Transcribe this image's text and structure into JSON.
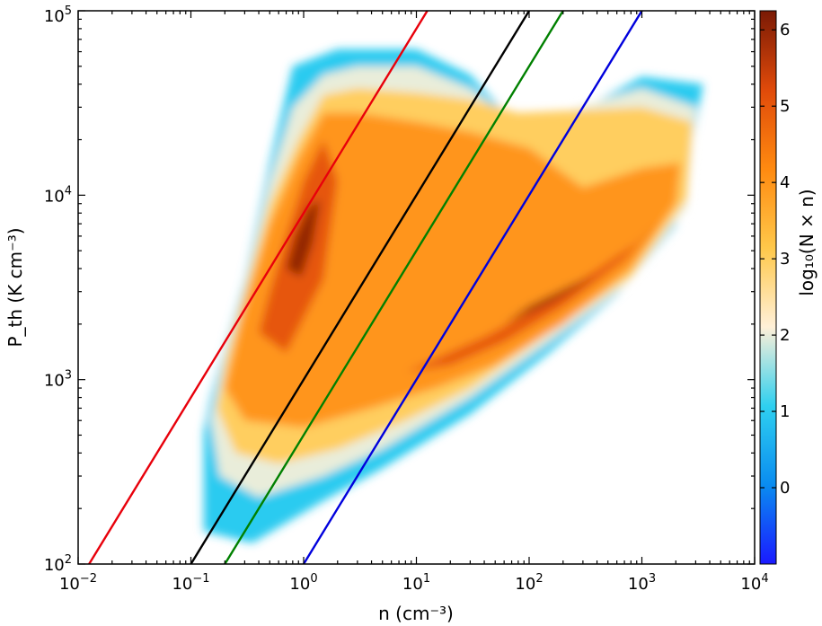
{
  "chart_data": {
    "type": "heatmap",
    "xlabel": "n (cm⁻³)",
    "ylabel": "P_th (K cm⁻³)",
    "x_scale": "log",
    "y_scale": "log",
    "xlim": [
      0.01,
      10000
    ],
    "ylim": [
      100,
      100000
    ],
    "x_tick_labels": [
      {
        "value": 0.01,
        "base": "10",
        "exp": "−2"
      },
      {
        "value": 0.1,
        "base": "10",
        "exp": "−1"
      },
      {
        "value": 1,
        "base": "10",
        "exp": "0"
      },
      {
        "value": 10,
        "base": "10",
        "exp": "1"
      },
      {
        "value": 100,
        "base": "10",
        "exp": "2"
      },
      {
        "value": 1000,
        "base": "10",
        "exp": "3"
      },
      {
        "value": 10000,
        "base": "10",
        "exp": "4"
      }
    ],
    "y_tick_labels": [
      {
        "value": 100,
        "base": "10",
        "exp": "2"
      },
      {
        "value": 1000,
        "base": "10",
        "exp": "3"
      },
      {
        "value": 10000,
        "base": "10",
        "exp": "4"
      },
      {
        "value": 100000,
        "base": "10",
        "exp": "5"
      }
    ],
    "colorbar": {
      "label": "log₁₀(N × n)",
      "range": [
        -1,
        6.25
      ],
      "ticks": [
        0,
        1,
        2,
        3,
        4,
        5,
        6
      ],
      "colormap": [
        "#1a1aff",
        "#0a8cf0",
        "#2fd0f0",
        "#fff0d8",
        "#ffc84a",
        "#ff8a10",
        "#e04a0a",
        "#7a1a05"
      ]
    },
    "lines": [
      {
        "color": "#e8000b",
        "x": [
          0.0125,
          12.5
        ],
        "y": [
          100,
          100000
        ]
      },
      {
        "color": "#000000",
        "x": [
          0.1,
          100
        ],
        "y": [
          100,
          100000
        ]
      },
      {
        "color": "#008000",
        "x": [
          0.2,
          200
        ],
        "y": [
          100,
          100000
        ]
      },
      {
        "color": "#0000dd",
        "x": [
          1,
          1000
        ],
        "y": [
          100,
          100000
        ]
      }
    ],
    "density_regions": [
      {
        "level": 1.0,
        "polygon": [
          [
            0.13,
            520
          ],
          [
            0.13,
            150
          ],
          [
            0.35,
            130
          ],
          [
            1.5,
            220
          ],
          [
            5,
            330
          ],
          [
            30,
            650
          ],
          [
            150,
            1400
          ],
          [
            600,
            2900
          ],
          [
            2000,
            6800
          ],
          [
            3500,
            40000
          ],
          [
            1000,
            44000
          ],
          [
            100,
            20000
          ],
          [
            30,
            45000
          ],
          [
            10,
            62000
          ],
          [
            2,
            62000
          ],
          [
            0.8,
            50000
          ],
          [
            0.5,
            15000
          ],
          [
            0.3,
            3500
          ],
          [
            0.2,
            1500
          ],
          [
            0.15,
            800
          ]
        ]
      },
      {
        "level": 2.0,
        "polygon": [
          [
            0.15,
            600
          ],
          [
            0.18,
            300
          ],
          [
            0.4,
            230
          ],
          [
            1.5,
            300
          ],
          [
            5,
            420
          ],
          [
            30,
            800
          ],
          [
            150,
            1600
          ],
          [
            700,
            3200
          ],
          [
            2500,
            8500
          ],
          [
            3000,
            30000
          ],
          [
            1000,
            38000
          ],
          [
            80,
            24000
          ],
          [
            30,
            38000
          ],
          [
            10,
            50000
          ],
          [
            3,
            50000
          ],
          [
            1.5,
            45000
          ],
          [
            0.8,
            30000
          ],
          [
            0.5,
            12000
          ],
          [
            0.3,
            3200
          ],
          [
            0.2,
            1400
          ]
        ]
      },
      {
        "level": 3.0,
        "polygon": [
          [
            0.17,
            700
          ],
          [
            0.25,
            400
          ],
          [
            0.6,
            350
          ],
          [
            2,
            420
          ],
          [
            8,
            600
          ],
          [
            30,
            900
          ],
          [
            150,
            1800
          ],
          [
            800,
            3600
          ],
          [
            2500,
            9500
          ],
          [
            2800,
            25000
          ],
          [
            1000,
            30000
          ],
          [
            80,
            28000
          ],
          [
            30,
            33000
          ],
          [
            10,
            36000
          ],
          [
            3,
            38000
          ],
          [
            1.5,
            35000
          ],
          [
            0.9,
            20000
          ],
          [
            0.5,
            9000
          ],
          [
            0.3,
            3000
          ],
          [
            0.2,
            1200
          ]
        ]
      },
      {
        "level": 4.0,
        "polygon": [
          [
            0.2,
            900
          ],
          [
            0.3,
            600
          ],
          [
            1,
            550
          ],
          [
            4,
            700
          ],
          [
            15,
            900
          ],
          [
            50,
            1200
          ],
          [
            200,
            2000
          ],
          [
            800,
            4000
          ],
          [
            2000,
            9000
          ],
          [
            2200,
            15000
          ],
          [
            1000,
            14000
          ],
          [
            300,
            11000
          ],
          [
            100,
            18000
          ],
          [
            30,
            22000
          ],
          [
            10,
            25000
          ],
          [
            3,
            28000
          ],
          [
            1.5,
            28000
          ],
          [
            0.9,
            16000
          ],
          [
            0.5,
            7000
          ],
          [
            0.3,
            2500
          ]
        ]
      },
      {
        "level": 5.0,
        "polygon": [
          [
            0.4,
            1800
          ],
          [
            0.7,
            1400
          ],
          [
            1.5,
            3500
          ],
          [
            2,
            12000
          ],
          [
            1.5,
            20000
          ],
          [
            1,
            12000
          ],
          [
            0.7,
            6000
          ],
          [
            0.5,
            3000
          ]
        ]
      },
      {
        "level": 5.0,
        "polygon": [
          [
            8,
            1100
          ],
          [
            20,
            1200
          ],
          [
            60,
            1600
          ],
          [
            200,
            2500
          ],
          [
            700,
            4500
          ],
          [
            1500,
            7500
          ],
          [
            900,
            5500
          ],
          [
            300,
            3500
          ],
          [
            100,
            2300
          ],
          [
            40,
            1700
          ],
          [
            15,
            1300
          ]
        ]
      },
      {
        "level": 6.0,
        "polygon": [
          [
            0.7,
            4000
          ],
          [
            0.95,
            3600
          ],
          [
            1.2,
            5500
          ],
          [
            1.4,
            9500
          ],
          [
            1.1,
            8500
          ],
          [
            0.85,
            6000
          ]
        ]
      },
      {
        "level": 6.0,
        "polygon": [
          [
            60,
            2000
          ],
          [
            150,
            2600
          ],
          [
            400,
            3700
          ],
          [
            250,
            3300
          ],
          [
            100,
            2500
          ]
        ]
      }
    ]
  }
}
